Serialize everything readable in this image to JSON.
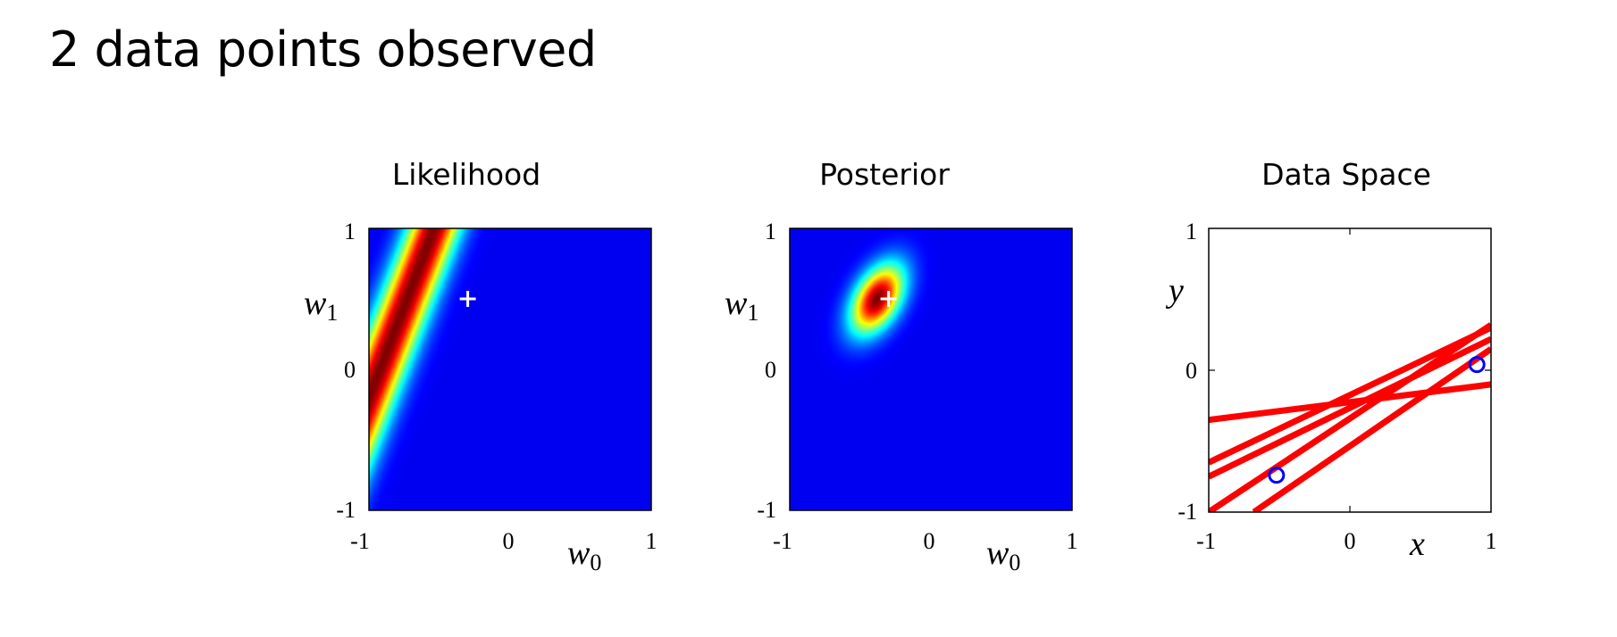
{
  "slide_title": "2 data points observed",
  "chart_data": [
    {
      "type": "heatmap",
      "title": "Likelihood",
      "xlabel": "w0",
      "ylabel": "w1",
      "xlim": [
        -1,
        1
      ],
      "ylim": [
        -1,
        1
      ],
      "xticks": [
        "-1",
        "0",
        "1"
      ],
      "yticks": [
        "-1",
        "0",
        "1"
      ],
      "colormap": "jet",
      "ridge_line": {
        "w1_at_w0_minus1": -0.2,
        "slope_dw1_dw0": 2.6,
        "width": 0.12
      },
      "marker": {
        "w0": -0.3,
        "w1": 0.5,
        "symbol": "+",
        "color": "#ffffff"
      }
    },
    {
      "type": "heatmap",
      "title": "Posterior",
      "xlabel": "w0",
      "ylabel": "w1",
      "xlim": [
        -1,
        1
      ],
      "ylim": [
        -1,
        1
      ],
      "xticks": [
        "-1",
        "0",
        "1"
      ],
      "yticks": [
        "-1",
        "0",
        "1"
      ],
      "colormap": "jet",
      "peak": {
        "w0": -0.38,
        "w1": 0.5,
        "spread_w0": 0.13,
        "spread_w1": 0.17,
        "correlation": 0.45
      },
      "marker": {
        "w0": -0.3,
        "w1": 0.5,
        "symbol": "+",
        "color": "#ffffff"
      }
    },
    {
      "type": "line",
      "title": "Data Space",
      "xlabel": "x",
      "ylabel": "y",
      "xlim": [
        -1,
        1
      ],
      "ylim": [
        -1,
        1
      ],
      "xticks": [
        "-1",
        "0",
        "1"
      ],
      "yticks": [
        "-1",
        "0",
        "1"
      ],
      "line_color": "#ff0000",
      "sample_lines": [
        {
          "x": [
            -1,
            1
          ],
          "y": [
            -0.35,
            -0.1
          ]
        },
        {
          "x": [
            -1,
            1
          ],
          "y": [
            -0.65,
            0.3
          ]
        },
        {
          "x": [
            -1,
            1
          ],
          "y": [
            -0.75,
            0.22
          ]
        },
        {
          "x": [
            -1,
            1
          ],
          "y": [
            -1.0,
            0.32
          ]
        },
        {
          "x": [
            -0.68,
            1
          ],
          "y": [
            -1.0,
            0.15
          ]
        }
      ],
      "points": [
        {
          "x": -0.52,
          "y": -0.74
        },
        {
          "x": 0.9,
          "y": 0.04
        }
      ],
      "point_color": "#0000ff"
    }
  ]
}
